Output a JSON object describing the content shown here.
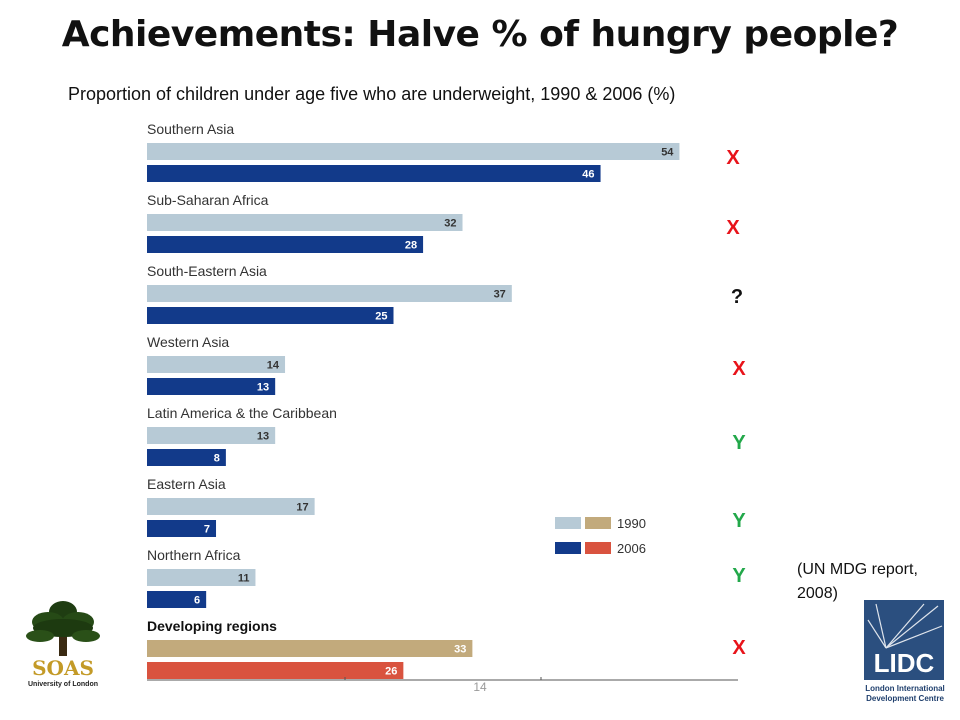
{
  "title": "Achievements: Halve % of hungry people?",
  "subtitle": "Proportion of children under age five who are underweight, 1990 & 2006 (%)",
  "source_note": "(UN MDG report, 2008)",
  "page_number": "14",
  "logos": {
    "soas": {
      "word": "SOAS",
      "subtitle": "University of London"
    },
    "lidc": {
      "word": "LIDC",
      "subtitle": "London International Development Centre"
    }
  },
  "colors": {
    "bar_1990": "#b7cad6",
    "bar_2006": "#123a8a",
    "bar_1990_total": "#c2aa7c",
    "bar_2006_total": "#d9533f",
    "mark_x": "#e8131a",
    "mark_y": "#22a84a",
    "mark_q": "#111111"
  },
  "chart_data": {
    "type": "bar",
    "orientation": "horizontal",
    "categories": [
      "Southern Asia",
      "Sub-Saharan Africa",
      "South-Eastern Asia",
      "Western Asia",
      "Latin America & the Caribbean",
      "Eastern Asia",
      "Northern Africa",
      "Developing regions"
    ],
    "series": [
      {
        "name": "1990",
        "values": [
          54,
          32,
          37,
          14,
          13,
          17,
          11,
          33
        ]
      },
      {
        "name": "2006",
        "values": [
          46,
          28,
          25,
          13,
          8,
          7,
          6,
          26
        ]
      }
    ],
    "xlim": [
      0,
      60
    ],
    "legend": {
      "position": "bottom-right",
      "labels": [
        "1990",
        "2006"
      ]
    },
    "annotations": [
      "X",
      "X",
      "?",
      "X",
      "Y",
      "Y",
      "Y",
      "X"
    ]
  }
}
